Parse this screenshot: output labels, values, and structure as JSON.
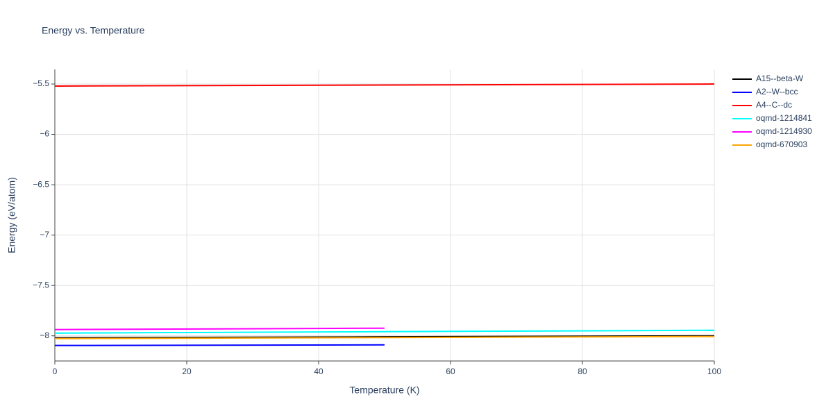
{
  "chart_data": {
    "type": "line",
    "title": "Energy vs. Temperature",
    "x_label": "Temperature (K)",
    "y_label": "Energy (eV/atom)",
    "xlim": [
      0,
      100
    ],
    "xticks": [
      0,
      20,
      40,
      60,
      80,
      100
    ],
    "ylim": [
      -8.25,
      -5.355
    ],
    "yticks": [
      {
        "value": -8,
        "label": "−8"
      },
      {
        "value": -7.5,
        "label": "−7.5"
      },
      {
        "value": -7,
        "label": "−7"
      },
      {
        "value": -6.5,
        "label": "−6.5"
      },
      {
        "value": -6,
        "label": "−6"
      },
      {
        "value": -5.5,
        "label": "−5.5"
      }
    ],
    "grid": true,
    "legend": "right",
    "series": [
      {
        "name": "A15--beta-W",
        "color": "#000000",
        "x": [
          0,
          50,
          100
        ],
        "values": [
          -8.02,
          -8.01,
          -8.0
        ]
      },
      {
        "name": "A2--W--bcc",
        "color": "#0000ff",
        "x": [
          0,
          25,
          50
        ],
        "values": [
          -8.096,
          -8.093,
          -8.09
        ]
      },
      {
        "name": "A4--C--dc",
        "color": "#ff0000",
        "x": [
          0,
          50,
          100
        ],
        "values": [
          -5.52,
          -5.51,
          -5.5
        ]
      },
      {
        "name": "oqmd-1214841",
        "color": "#00ffff",
        "x": [
          0,
          50,
          100
        ],
        "values": [
          -7.973,
          -7.959,
          -7.945
        ]
      },
      {
        "name": "oqmd-1214930",
        "color": "#ff00ff",
        "x": [
          0,
          25,
          50
        ],
        "values": [
          -7.938,
          -7.931,
          -7.924
        ]
      },
      {
        "name": "oqmd-670903",
        "color": "#ffa500",
        "x": [
          0,
          50,
          100
        ],
        "values": [
          -8.028,
          -8.017,
          -8.007
        ]
      }
    ]
  }
}
